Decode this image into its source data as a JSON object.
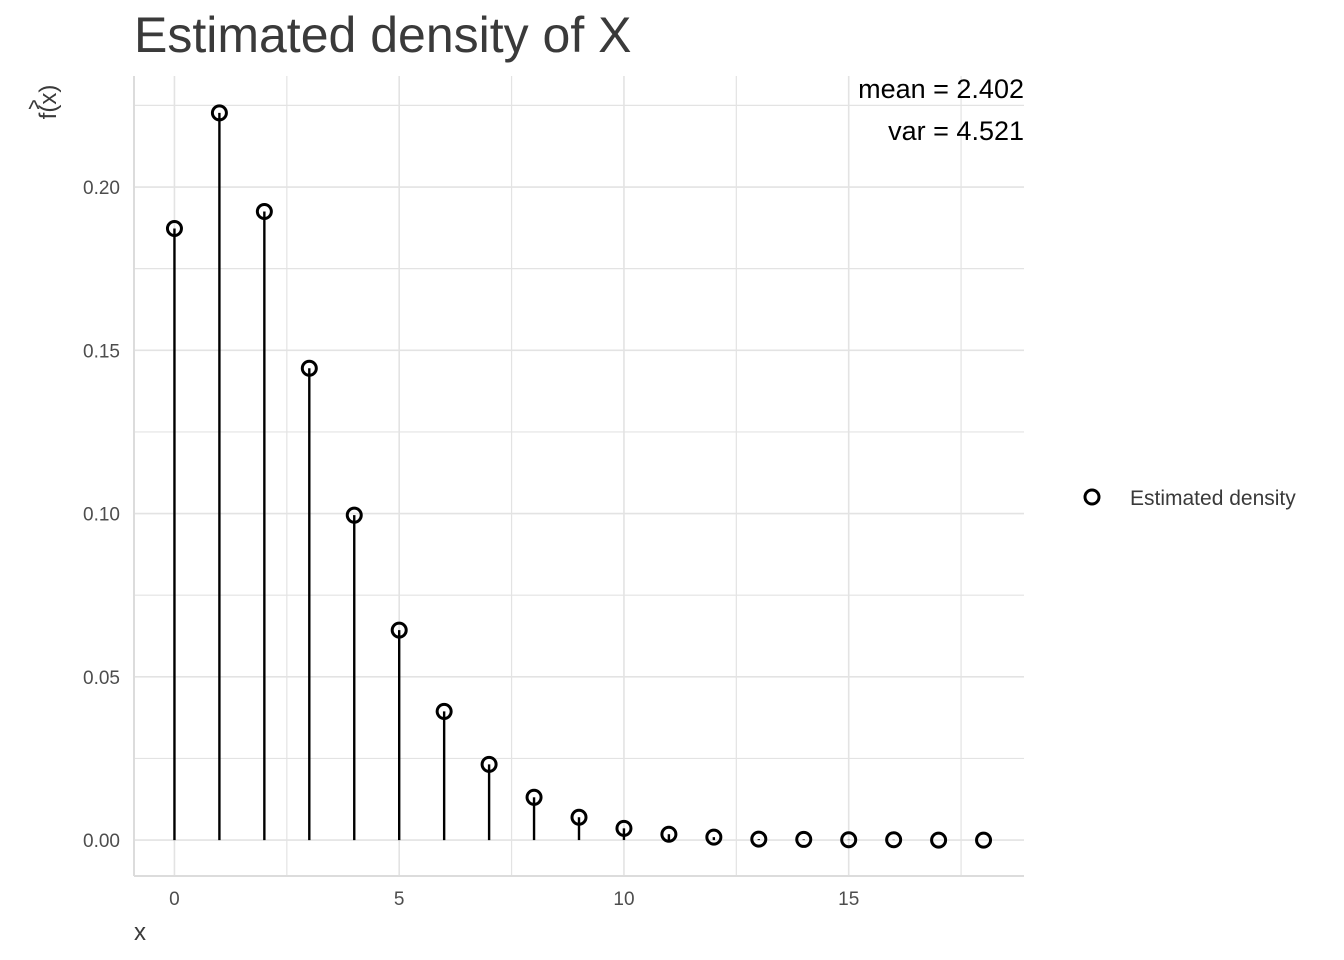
{
  "chart_data": {
    "type": "scatter",
    "title": "Estimated density of X",
    "xlabel": "x",
    "ylabel": "f(x)",
    "ylabel_hat": "^",
    "xlim": [
      -0.9,
      18.9
    ],
    "ylim": [
      -0.011,
      0.234
    ],
    "x_ticks": [
      0,
      5,
      10,
      15
    ],
    "x_tick_labels": [
      "0",
      "5",
      "10",
      "15"
    ],
    "y_ticks": [
      0,
      0.05,
      0.1,
      0.15,
      0.2
    ],
    "y_tick_labels": [
      "0.00",
      "0.05",
      "0.10",
      "0.15",
      "0.20"
    ],
    "grid": true,
    "series": [
      {
        "name": "Estimated density",
        "x": [
          0,
          1,
          2,
          3,
          4,
          5,
          6,
          7,
          8,
          9,
          10,
          11,
          12,
          13,
          14,
          15,
          16,
          17,
          18
        ],
        "values": [
          0.1873,
          0.2227,
          0.1925,
          0.1445,
          0.0995,
          0.0643,
          0.0394,
          0.0232,
          0.0131,
          0.007,
          0.0036,
          0.0018,
          0.0009,
          0.0003,
          0.0002,
          0.0001,
          0.0001,
          0.0,
          0.0
        ]
      }
    ],
    "annotations": [
      "mean = 2.402",
      "var = 4.521"
    ],
    "legend_placement": "right",
    "colors": {
      "marks": "#000000",
      "grid": "#e3e3e3",
      "axis": "#dcdcdc"
    }
  }
}
